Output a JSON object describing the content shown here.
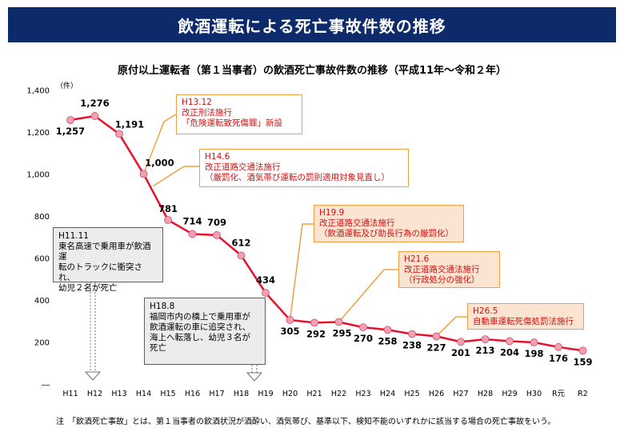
{
  "header": {
    "title": "飲酒運転による死亡事故件数の推移",
    "subtitle": "原付以上運転者（第１当事者）の飲酒死亡事故件数の推移（平成11年～令和２年）",
    "unit": "（件）"
  },
  "chart_data": {
    "type": "line",
    "categories": [
      "H11",
      "H12",
      "H13",
      "H14",
      "H15",
      "H16",
      "H17",
      "H18",
      "H19",
      "H20",
      "H21",
      "H22",
      "H23",
      "H24",
      "H25",
      "H26",
      "H27",
      "H28",
      "H29",
      "H30",
      "R元",
      "R2"
    ],
    "values": [
      1257,
      1276,
      1191,
      1000,
      781,
      714,
      709,
      612,
      434,
      305,
      292,
      295,
      270,
      258,
      238,
      227,
      201,
      213,
      204,
      198,
      176,
      159
    ],
    "value_labels": [
      "1,257",
      "1,276",
      "1,191",
      "1,000",
      "781",
      "714",
      "709",
      "612",
      "434",
      "305",
      "292",
      "295",
      "270",
      "258",
      "238",
      "227",
      "201",
      "213",
      "204",
      "198",
      "176",
      "159"
    ],
    "yticks": [
      "1,400",
      "1,200",
      "1,000",
      "800",
      "600",
      "400",
      "200",
      "―"
    ],
    "ylim": [
      0,
      1400
    ],
    "color": "#e8102a",
    "marker_color": "#f4a0b0"
  },
  "annotations": [
    {
      "id": "h13",
      "lines": [
        "H13.12",
        "改正刑法施行",
        "「危険運転致死傷罪」新設"
      ]
    },
    {
      "id": "h14",
      "lines": [
        "H14.6",
        "改正道路交通法施行",
        "（厳罰化、酒気帯び運転の罰則適用対象見直し）"
      ]
    },
    {
      "id": "h19",
      "lines": [
        "H19.9",
        "改正道路交通法施行",
        "（飲酒運転及び助長行為の厳罰化）"
      ]
    },
    {
      "id": "h21",
      "lines": [
        "H21.6",
        "改正道路交通法施行",
        "（行政処分の強化）"
      ]
    },
    {
      "id": "h26",
      "lines": [
        "H26.5",
        "自動車運転死傷処罰法施行"
      ]
    },
    {
      "id": "h11",
      "lines": [
        "H11.11",
        "東名高速で乗用車が飲酒運",
        "転のトラックに衝突され、",
        "幼児２名が死亡"
      ]
    },
    {
      "id": "h18",
      "lines": [
        "H18.8",
        "福岡市内の橋上で乗用車が",
        "飲酒運転の車に追突され、",
        "海上へ転落し、幼児３名が",
        "死亡"
      ]
    }
  ],
  "note": "注　「飲酒死亡事故」とは、第１当事者の飲酒状況が酒酔い、酒気帯び、基準以下、検知不能のいずれかに該当する場合の死亡事故をいう。"
}
